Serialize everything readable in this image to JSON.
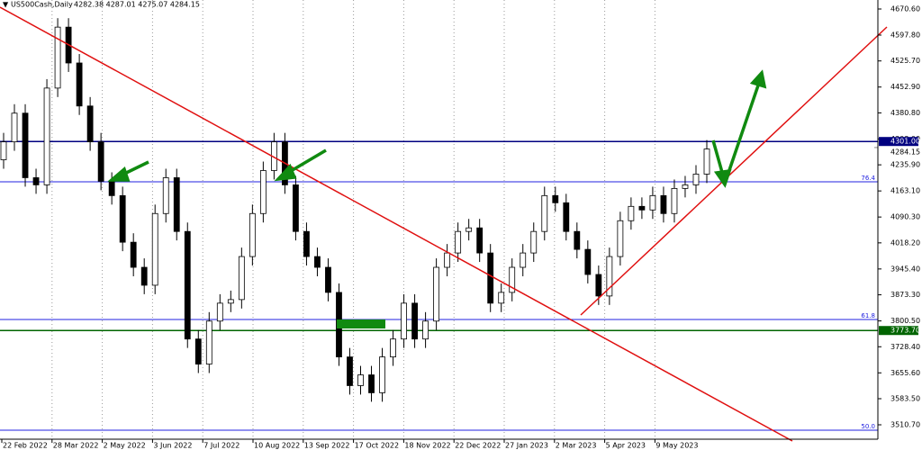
{
  "chart_data": {
    "type": "candlestick",
    "symbol": "US500Cash,Daily",
    "ohlc_text": "4282.38 4287.01 4275.07 4284.15",
    "categories": [
      "22 Feb 2022",
      "28 Mar 2022",
      "2 May 2022",
      "3 Jun 2022",
      "7 Jul 2022",
      "10 Aug 2022",
      "13 Sep 2022",
      "17 Oct 2022",
      "18 Nov 2022",
      "22 Dec 2022",
      "27 Jan 2023",
      "2 Mar 2023",
      "5 Apr 2023",
      "9 May 2023"
    ],
    "open": [
      4250,
      4300,
      4380,
      4200,
      4180,
      4450,
      4620,
      4520,
      4400,
      4300,
      4190,
      4150,
      4020,
      3950,
      3900,
      4100,
      4200,
      4050,
      3750,
      3680,
      3800,
      3850,
      3860,
      3980,
      4100,
      4220,
      4300,
      4180,
      4050,
      3980,
      3950,
      3880,
      3700,
      3620,
      3650,
      3600,
      3700,
      3750,
      3850,
      3750,
      3800,
      3950,
      3990,
      4050,
      4060,
      3990,
      3850,
      3880,
      3950,
      3990,
      4050,
      4150,
      4130,
      4050,
      4000,
      3930,
      3870,
      3980,
      4080,
      4120,
      4110,
      4150,
      4100,
      4170,
      4180,
      4210
    ],
    "high": [
      4325,
      4405,
      4405,
      4225,
      4475,
      4645,
      4645,
      4545,
      4425,
      4325,
      4215,
      4175,
      4045,
      3975,
      4125,
      4225,
      4225,
      4075,
      3775,
      3825,
      3875,
      3885,
      4005,
      4125,
      4245,
      4325,
      4325,
      4205,
      4075,
      4005,
      3975,
      3905,
      3725,
      3675,
      3675,
      3725,
      3775,
      3875,
      3875,
      3825,
      3975,
      4015,
      4075,
      4085,
      4085,
      4015,
      3905,
      3975,
      4015,
      4075,
      4175,
      4175,
      4155,
      4075,
      4025,
      3955,
      4005,
      4105,
      4145,
      4145,
      4175,
      4175,
      4195,
      4205,
      4235,
      4305
    ],
    "low": [
      4225,
      4275,
      4175,
      4155,
      4155,
      4425,
      4495,
      4375,
      4275,
      4165,
      4125,
      3995,
      3925,
      3875,
      3875,
      4075,
      4025,
      3725,
      3655,
      3655,
      3775,
      3825,
      3835,
      3955,
      4075,
      4195,
      4155,
      4025,
      3955,
      3925,
      3855,
      3675,
      3595,
      3595,
      3575,
      3575,
      3675,
      3725,
      3725,
      3725,
      3775,
      3925,
      3965,
      4025,
      3965,
      3825,
      3825,
      3855,
      3925,
      3965,
      4025,
      4105,
      4025,
      3975,
      3905,
      3845,
      3845,
      3955,
      4055,
      4085,
      4085,
      4075,
      4075,
      4145,
      4155,
      4185
    ],
    "close": [
      4300,
      4380,
      4200,
      4180,
      4450,
      4620,
      4520,
      4400,
      4300,
      4190,
      4150,
      4020,
      3950,
      3900,
      4100,
      4200,
      4050,
      3750,
      3680,
      3800,
      3850,
      3860,
      3980,
      4100,
      4220,
      4300,
      4180,
      4050,
      3980,
      3950,
      3880,
      3700,
      3620,
      3650,
      3600,
      3700,
      3750,
      3850,
      3750,
      3800,
      3950,
      3990,
      4050,
      4060,
      3990,
      3850,
      3880,
      3950,
      3990,
      4050,
      4150,
      4130,
      4050,
      4000,
      3930,
      3870,
      3980,
      4080,
      4120,
      4110,
      4150,
      4100,
      4170,
      4180,
      4210,
      4280
    ],
    "ylim": [
      3465.5,
      4695.7
    ],
    "yticks": [
      {
        "value": 4670.6,
        "label": "4670.60"
      },
      {
        "value": 4597.8,
        "label": "4597.80"
      },
      {
        "value": 4525.7,
        "label": "4525.70"
      },
      {
        "value": 4452.9,
        "label": "4452.90"
      },
      {
        "value": 4380.8,
        "label": "4380.80"
      },
      {
        "value": 4308,
        "label": "4308.00"
      },
      {
        "value": 4235.9,
        "label": "4235.90"
      },
      {
        "value": 4163.1,
        "label": "4163.10"
      },
      {
        "value": 4090.3,
        "label": "4090.30"
      },
      {
        "value": 4018.2,
        "label": "4018.20"
      },
      {
        "value": 3945.4,
        "label": "3945.40"
      },
      {
        "value": 3873.3,
        "label": "3873.30"
      },
      {
        "value": 3800.5,
        "label": "3800.50"
      },
      {
        "value": 3728.4,
        "label": "3728.40"
      },
      {
        "value": 3655.6,
        "label": "3655.60"
      },
      {
        "value": 3583.5,
        "label": "3583.50"
      },
      {
        "value": 3510.7,
        "label": "3510.70"
      }
    ],
    "levels": [
      {
        "value": 4301,
        "label": "4301.00",
        "color": "#000080"
      },
      {
        "value": 3773.7,
        "label": "3773.70",
        "color": "#006400"
      }
    ],
    "price_label": {
      "value": 4284.15,
      "label": "4284.15"
    },
    "fib_levels": [
      {
        "value": 4188.5,
        "label": "76.4"
      },
      {
        "value": 3804.4,
        "label": "61.8"
      },
      {
        "value": 3495.5,
        "label": "50.0"
      }
    ]
  }
}
